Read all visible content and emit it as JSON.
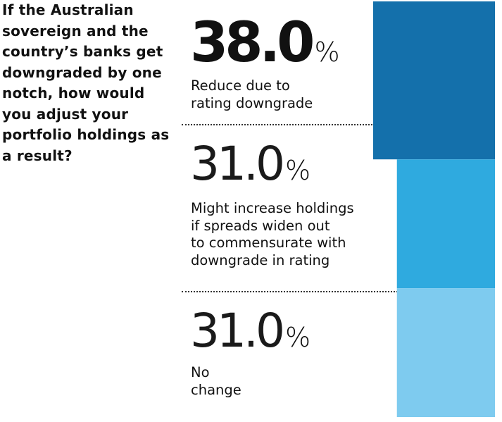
{
  "question": "If the Australian sovereign and the country’s banks get downgraded by one notch, how would you adjust your portfolio holdings as a result?",
  "percent_symbol": "%",
  "chart_data": {
    "type": "bar",
    "categories": [
      "Reduce due to rating downgrade",
      "Might increase holdings if spreads widen out to commensurate with downgrade in rating",
      "No change"
    ],
    "values": [
      38.0,
      31.0,
      31.0
    ],
    "value_labels": [
      "38.0",
      "31.0",
      "31.0"
    ],
    "colors": [
      "#1470ab",
      "#2faadf",
      "#7ecbef"
    ],
    "unit": "%"
  },
  "rows": [
    {
      "value": "38.0",
      "label_lines": [
        "Reduce due to",
        "rating downgrade"
      ]
    },
    {
      "value": "31.0",
      "label_lines": [
        "Might increase holdings",
        "if spreads widen out",
        "to commensurate with",
        "downgrade in rating"
      ]
    },
    {
      "value": "31.0",
      "label_lines": [
        "No",
        "change"
      ]
    }
  ]
}
